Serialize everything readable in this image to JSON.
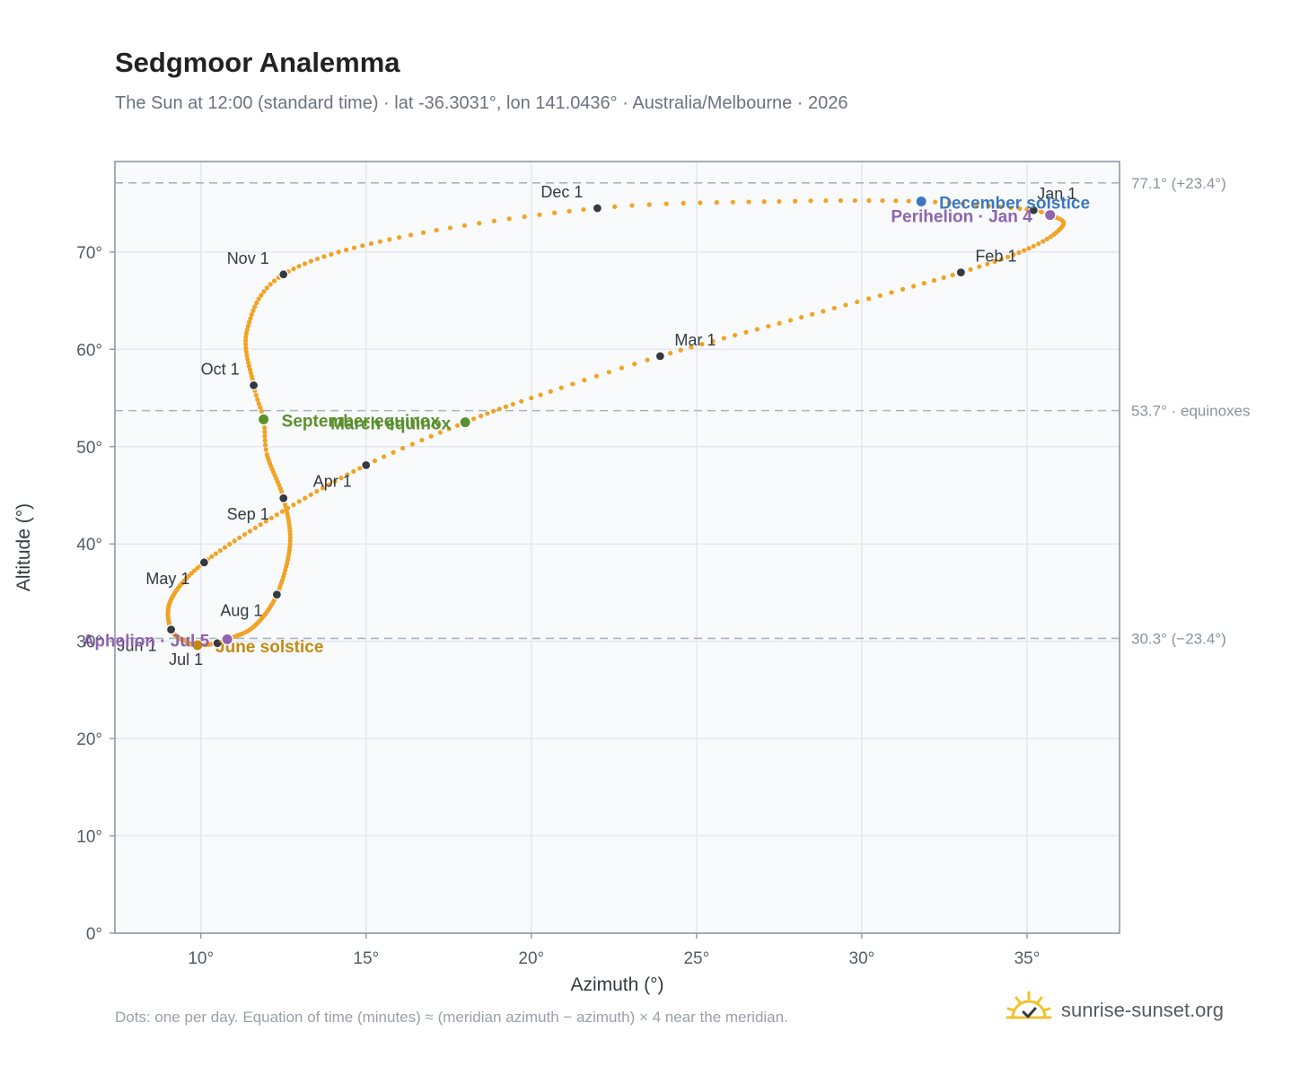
{
  "header": {
    "title": "Sedgmoor Analemma",
    "subtitle": "The Sun at 12:00 (standard time) · lat -36.3031°, lon 141.0436° · Australia/Melbourne · 2026"
  },
  "footer": {
    "note": "Dots: one per day. Equation of time (minutes) ≈ (meridian azimuth − azimuth) × 4 near the meridian.",
    "brand": "sunrise-sunset.org"
  },
  "icons": {
    "brand_logo": "sun-check-icon"
  },
  "colors": {
    "curve": "#f2a324",
    "month_marker": "#333a42",
    "equinox": "#5b8f2e",
    "june_solstice": "#c48a10",
    "december_solstice": "#3b78c0",
    "perihelion": "#8e64b0",
    "reference_line": "#aab4c0",
    "plot_background": "#f8fafc",
    "grid": "#e3e8ee"
  },
  "chart_data": {
    "type": "scatter",
    "xlabel": "Azimuth (°)",
    "ylabel": "Altitude (°)",
    "xlim": [
      7.4,
      37.8
    ],
    "ylim": [
      0,
      79.3
    ],
    "x_ticks": [
      10,
      15,
      20,
      25,
      30,
      35
    ],
    "x_tick_labels": [
      "10°",
      "15°",
      "20°",
      "25°",
      "30°",
      "35°"
    ],
    "y_ticks": [
      0,
      10,
      20,
      30,
      40,
      50,
      60,
      70
    ],
    "y_tick_labels": [
      "0°",
      "10°",
      "20°",
      "30°",
      "40°",
      "50°",
      "60°",
      "70°"
    ],
    "grid": true,
    "daily_path": {
      "description_none": "",
      "anchors": [
        {
          "day": 0,
          "az": 35.2,
          "alt": 74.3
        },
        {
          "day": 4,
          "az": 35.7,
          "alt": 73.8
        },
        {
          "day": 10,
          "az": 36.1,
          "alt": 72.8
        },
        {
          "day": 20,
          "az": 35.2,
          "alt": 70.6
        },
        {
          "day": 31,
          "az": 33.0,
          "alt": 67.9
        },
        {
          "day": 45,
          "az": 28.5,
          "alt": 63.6
        },
        {
          "day": 59,
          "az": 23.9,
          "alt": 59.3
        },
        {
          "day": 70,
          "az": 20.0,
          "alt": 55.0
        },
        {
          "day": 79,
          "az": 18.0,
          "alt": 52.5
        },
        {
          "day": 90,
          "az": 15.0,
          "alt": 48.1
        },
        {
          "day": 105,
          "az": 12.3,
          "alt": 43.0
        },
        {
          "day": 120,
          "az": 10.1,
          "alt": 38.1
        },
        {
          "day": 135,
          "az": 9.1,
          "alt": 34.3
        },
        {
          "day": 151,
          "az": 9.1,
          "alt": 31.2
        },
        {
          "day": 165,
          "az": 9.6,
          "alt": 29.9
        },
        {
          "day": 172,
          "az": 9.9,
          "alt": 29.6
        },
        {
          "day": 181,
          "az": 10.5,
          "alt": 29.8
        },
        {
          "day": 185,
          "az": 10.8,
          "alt": 30.2
        },
        {
          "day": 197,
          "az": 11.6,
          "alt": 31.5
        },
        {
          "day": 212,
          "az": 12.3,
          "alt": 34.8
        },
        {
          "day": 228,
          "az": 12.7,
          "alt": 40.0
        },
        {
          "day": 243,
          "az": 12.5,
          "alt": 44.7
        },
        {
          "day": 257,
          "az": 12.0,
          "alt": 49.2
        },
        {
          "day": 265,
          "az": 11.9,
          "alt": 52.8
        },
        {
          "day": 273,
          "az": 11.6,
          "alt": 56.3
        },
        {
          "day": 289,
          "az": 11.4,
          "alt": 62.0
        },
        {
          "day": 304,
          "az": 12.5,
          "alt": 67.7
        },
        {
          "day": 320,
          "az": 16.0,
          "alt": 71.5
        },
        {
          "day": 334,
          "az": 22.0,
          "alt": 74.5
        },
        {
          "day": 345,
          "az": 27.5,
          "alt": 75.2
        },
        {
          "day": 355,
          "az": 31.8,
          "alt": 75.2
        },
        {
          "day": 364,
          "az": 35.0,
          "alt": 74.4
        }
      ]
    },
    "month_markers": [
      {
        "label": "Jan 1",
        "az": 35.2,
        "alt": 74.3,
        "anchor": "start",
        "dx": 4,
        "dy": -12
      },
      {
        "label": "Feb 1",
        "az": 33.0,
        "alt": 67.9,
        "anchor": "start",
        "dx": 16,
        "dy": -12
      },
      {
        "label": "Mar 1",
        "az": 23.9,
        "alt": 59.3,
        "anchor": "start",
        "dx": 16,
        "dy": -12
      },
      {
        "label": "Apr 1",
        "az": 15.0,
        "alt": 48.1,
        "anchor": "end",
        "dx": -16,
        "dy": 24
      },
      {
        "label": "May 1",
        "az": 10.1,
        "alt": 38.1,
        "anchor": "end",
        "dx": -16,
        "dy": 24
      },
      {
        "label": "Jun 1",
        "az": 9.1,
        "alt": 31.2,
        "anchor": "end",
        "dx": -16,
        "dy": 24
      },
      {
        "label": "Jul 1",
        "az": 10.5,
        "alt": 29.8,
        "anchor": "end",
        "dx": -16,
        "dy": 24
      },
      {
        "label": "Aug 1",
        "az": 12.3,
        "alt": 34.8,
        "anchor": "end",
        "dx": -16,
        "dy": 24
      },
      {
        "label": "Sep 1",
        "az": 12.5,
        "alt": 44.7,
        "anchor": "end",
        "dx": -16,
        "dy": 24
      },
      {
        "label": "Oct 1",
        "az": 11.6,
        "alt": 56.3,
        "anchor": "end",
        "dx": -16,
        "dy": -12
      },
      {
        "label": "Nov 1",
        "az": 12.5,
        "alt": 67.7,
        "anchor": "end",
        "dx": -16,
        "dy": -12
      },
      {
        "label": "Dec 1",
        "az": 22.0,
        "alt": 74.5,
        "anchor": "end",
        "dx": -16,
        "dy": -12
      }
    ],
    "key_points": [
      {
        "label": "December solstice",
        "az": 31.8,
        "alt": 75.2,
        "color_key": "december_solstice",
        "anchor": "start",
        "dx": 20,
        "dy": 8
      },
      {
        "label": "Perihelion · Jan 4",
        "az": 35.7,
        "alt": 73.8,
        "color_key": "perihelion",
        "anchor": "end",
        "dx": -20,
        "dy": 8
      },
      {
        "label": "September equinox",
        "az": 11.9,
        "alt": 52.8,
        "color_key": "equinox",
        "anchor": "start",
        "dx": 20,
        "dy": 8
      },
      {
        "label": "March equinox",
        "az": 18.0,
        "alt": 52.5,
        "color_key": "equinox",
        "anchor": "end",
        "dx": -16,
        "dy": 8
      },
      {
        "label": "June solstice",
        "az": 9.9,
        "alt": 29.6,
        "color_key": "june_solstice",
        "anchor": "start",
        "dx": 20,
        "dy": 8
      },
      {
        "label": "Aphelion · Jul 5",
        "az": 10.8,
        "alt": 30.2,
        "color_key": "perihelion",
        "anchor": "end",
        "dx": -20,
        "dy": 8
      }
    ],
    "reference_lines": [
      {
        "alt": 77.1,
        "label": "77.1° (+23.4°)"
      },
      {
        "alt": 53.7,
        "label": "53.7° · equinoxes"
      },
      {
        "alt": 30.3,
        "label": "30.3° (−23.4°)"
      }
    ]
  }
}
